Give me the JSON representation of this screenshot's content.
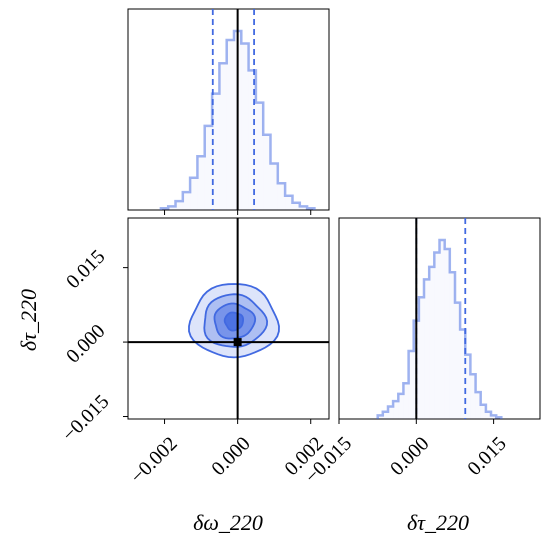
{
  "chart_data": {
    "type": "corner",
    "parameters": [
      "δω_220",
      "δτ_220"
    ],
    "axis_labels": {
      "x_left": "δω_220",
      "x_right": "δτ_220",
      "y_left": "δτ_220"
    },
    "colors": {
      "accent": "#4169e1",
      "truth": "#000000"
    },
    "truth": {
      "domega_220": 0.0,
      "dtau_220": 0.0
    },
    "hist_domega_220": {
      "xlim": [
        -0.003,
        0.0025
      ],
      "tick_values": [
        -0.002,
        0.0,
        0.002
      ],
      "tick_labels": [
        "−0.002",
        "0.000",
        "0.002"
      ],
      "quantiles": [
        -0.00068,
        0.00045
      ],
      "bins": [
        {
          "x": -0.002,
          "density": 0.01
        },
        {
          "x": -0.0018,
          "density": 0.02
        },
        {
          "x": -0.0016,
          "density": 0.05
        },
        {
          "x": -0.0014,
          "density": 0.1
        },
        {
          "x": -0.0012,
          "density": 0.18
        },
        {
          "x": -0.001,
          "density": 0.3
        },
        {
          "x": -0.0008,
          "density": 0.47
        },
        {
          "x": -0.0006,
          "density": 0.65
        },
        {
          "x": -0.0004,
          "density": 0.82
        },
        {
          "x": -0.0002,
          "density": 0.95
        },
        {
          "x": 0.0,
          "density": 1.0
        },
        {
          "x": 0.0002,
          "density": 0.93
        },
        {
          "x": 0.0004,
          "density": 0.78
        },
        {
          "x": 0.0006,
          "density": 0.6
        },
        {
          "x": 0.0008,
          "density": 0.42
        },
        {
          "x": 0.001,
          "density": 0.26
        },
        {
          "x": 0.0012,
          "density": 0.15
        },
        {
          "x": 0.0014,
          "density": 0.08
        },
        {
          "x": 0.0016,
          "density": 0.04
        },
        {
          "x": 0.0018,
          "density": 0.02
        },
        {
          "x": 0.002,
          "density": 0.01
        }
      ]
    },
    "hist_dtau_220": {
      "xlim": [
        -0.015,
        0.024
      ],
      "tick_values": [
        -0.015,
        0.0,
        0.015
      ],
      "tick_labels": [
        "−0.015",
        "0.000",
        "0.015"
      ],
      "quantiles": [
        0.0,
        0.0095
      ],
      "bins": [
        {
          "x": -0.007,
          "density": 0.02
        },
        {
          "x": -0.006,
          "density": 0.04
        },
        {
          "x": -0.005,
          "density": 0.07
        },
        {
          "x": -0.004,
          "density": 0.1
        },
        {
          "x": -0.003,
          "density": 0.14
        },
        {
          "x": -0.002,
          "density": 0.2
        },
        {
          "x": -0.001,
          "density": 0.38
        },
        {
          "x": 0.0,
          "density": 0.55
        },
        {
          "x": 0.001,
          "density": 0.68
        },
        {
          "x": 0.002,
          "density": 0.78
        },
        {
          "x": 0.003,
          "density": 0.85
        },
        {
          "x": 0.004,
          "density": 0.93
        },
        {
          "x": 0.005,
          "density": 1.0
        },
        {
          "x": 0.006,
          "density": 0.95
        },
        {
          "x": 0.007,
          "density": 0.82
        },
        {
          "x": 0.008,
          "density": 0.65
        },
        {
          "x": 0.009,
          "density": 0.5
        },
        {
          "x": 0.01,
          "density": 0.36
        },
        {
          "x": 0.011,
          "density": 0.25
        },
        {
          "x": 0.012,
          "density": 0.15
        },
        {
          "x": 0.013,
          "density": 0.08
        },
        {
          "x": 0.014,
          "density": 0.04
        },
        {
          "x": 0.015,
          "density": 0.02
        },
        {
          "x": 0.016,
          "density": 0.01
        }
      ]
    },
    "joint": {
      "xlim": [
        -0.003,
        0.0025
      ],
      "ylim": [
        -0.0155,
        0.025
      ],
      "x_tick_values": [
        -0.002,
        0.0,
        0.002
      ],
      "x_tick_labels": [
        "−0.002",
        "0.000",
        "0.002"
      ],
      "y_tick_values": [
        -0.015,
        0.0,
        0.015
      ],
      "y_tick_labels": [
        "−0.015",
        "0.000",
        "0.015"
      ],
      "center": {
        "x": -0.0001,
        "y": 0.0042
      },
      "contour_levels": [
        {
          "level": 1,
          "rx": 0.0012,
          "ry": 0.0074,
          "fill_opacity": 0.18
        },
        {
          "level": 2,
          "rx": 0.00085,
          "ry": 0.0053,
          "fill_opacity": 0.3
        },
        {
          "level": 3,
          "rx": 0.00055,
          "ry": 0.0035,
          "fill_opacity": 0.5
        },
        {
          "level": 4,
          "rx": 0.00025,
          "ry": 0.0018,
          "fill_opacity": 0.8
        }
      ]
    }
  }
}
